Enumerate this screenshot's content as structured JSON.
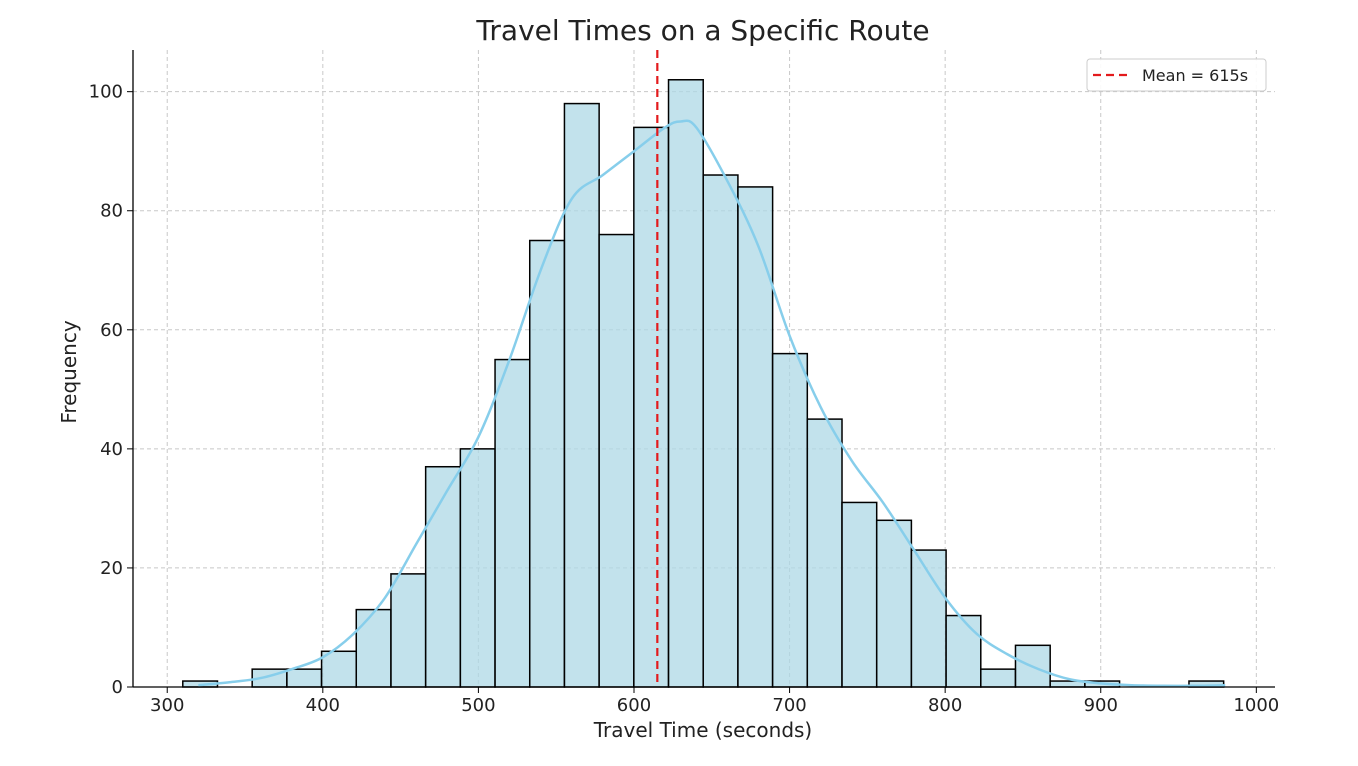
{
  "chart_data": {
    "type": "bar",
    "title": "Travel Times on a Specific Route",
    "xlabel": "Travel Time (seconds)",
    "ylabel": "Frequency",
    "xlim": [
      278,
      1012
    ],
    "ylim": [
      0,
      107
    ],
    "x_ticks": [
      300,
      400,
      500,
      600,
      700,
      800,
      900,
      1000
    ],
    "y_ticks": [
      0,
      20,
      40,
      60,
      80,
      100
    ],
    "grid": true,
    "legend_position": "top-right",
    "bin_width": 22.3,
    "bins": [
      {
        "start": 310.0,
        "count": 1
      },
      {
        "start": 332.3,
        "count": 0
      },
      {
        "start": 354.6,
        "count": 3
      },
      {
        "start": 376.9,
        "count": 3
      },
      {
        "start": 399.2,
        "count": 6
      },
      {
        "start": 421.5,
        "count": 13
      },
      {
        "start": 443.8,
        "count": 19
      },
      {
        "start": 466.1,
        "count": 37
      },
      {
        "start": 488.4,
        "count": 40
      },
      {
        "start": 510.7,
        "count": 55
      },
      {
        "start": 533.0,
        "count": 75
      },
      {
        "start": 555.3,
        "count": 98
      },
      {
        "start": 577.6,
        "count": 76
      },
      {
        "start": 599.9,
        "count": 94
      },
      {
        "start": 622.2,
        "count": 102
      },
      {
        "start": 644.5,
        "count": 86
      },
      {
        "start": 666.8,
        "count": 84
      },
      {
        "start": 689.1,
        "count": 56
      },
      {
        "start": 711.4,
        "count": 45
      },
      {
        "start": 733.7,
        "count": 31
      },
      {
        "start": 756.0,
        "count": 28
      },
      {
        "start": 778.3,
        "count": 23
      },
      {
        "start": 800.6,
        "count": 12
      },
      {
        "start": 822.9,
        "count": 3
      },
      {
        "start": 845.2,
        "count": 7
      },
      {
        "start": 867.5,
        "count": 1
      },
      {
        "start": 889.8,
        "count": 1
      },
      {
        "start": 912.1,
        "count": 0
      },
      {
        "start": 934.4,
        "count": 0
      },
      {
        "start": 956.7,
        "count": 1
      }
    ],
    "kde": {
      "x": [
        320,
        340,
        360,
        380,
        400,
        420,
        440,
        460,
        480,
        500,
        520,
        540,
        560,
        580,
        600,
        620,
        630,
        640,
        660,
        680,
        700,
        720,
        740,
        760,
        780,
        800,
        820,
        840,
        860,
        880,
        900,
        920,
        940,
        960,
        980
      ],
      "y": [
        0.3,
        0.8,
        1.5,
        3,
        5,
        9,
        15,
        24,
        33,
        42,
        55,
        70,
        82,
        86,
        90,
        94,
        95,
        94,
        85,
        74,
        59,
        47,
        38,
        31,
        23,
        15,
        9,
        5.5,
        3,
        1.3,
        0.6,
        0.3,
        0.2,
        0.2,
        0.3
      ],
      "color": "#87ceeb"
    },
    "mean_line": {
      "value": 615,
      "label": "Mean = 615s",
      "color": "#e31a1c"
    },
    "colors": {
      "bar_fill": "#add8e6",
      "bar_edge": "#000000"
    }
  }
}
